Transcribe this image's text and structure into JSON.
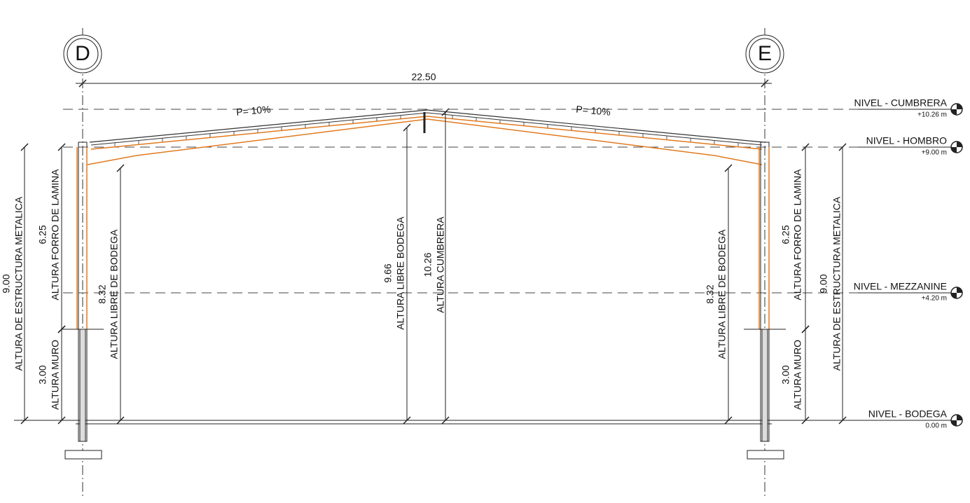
{
  "grid_axes": [
    {
      "label": "D"
    },
    {
      "label": "E"
    }
  ],
  "span": "22.50",
  "slopes": [
    "P= 10%",
    "P= 10%"
  ],
  "levels": [
    {
      "name": "NIVEL - CUMBRERA",
      "elevation": "+10.26 m"
    },
    {
      "name": "NIVEL - HOMBRO",
      "elevation": "+9.00 m"
    },
    {
      "name": "NIVEL - MEZZANINE",
      "elevation": "+4.20 m"
    },
    {
      "name": "NIVEL - BODEGA",
      "elevation": "0.00 m"
    }
  ],
  "dimensions": [
    {
      "value": "9.00",
      "label": "ALTURA DE ESTRUCTURA METALICA"
    },
    {
      "value": "6.25",
      "label": "ALTURA FORRO DE LAMINA"
    },
    {
      "value": "3.00",
      "label": "ALTURA MURO"
    },
    {
      "value": "8.32",
      "label": "ALTURA LIBRE DE BODEGA"
    },
    {
      "value": "9.66",
      "label": "ALTURA LIBRE BODEGA"
    },
    {
      "value": "10.26",
      "label": "ALTURA CUMBRERA"
    },
    {
      "value": "8.32",
      "label": "ALTURA LIBRE DE BODEGA"
    },
    {
      "value": "6.25",
      "label": "ALTURA FORRO DE LAMINA"
    },
    {
      "value": "3.00",
      "label": "ALTURA MURO"
    },
    {
      "value": "9.00",
      "label": "ALTURA DE ESTRUCTURA METALICA"
    }
  ]
}
